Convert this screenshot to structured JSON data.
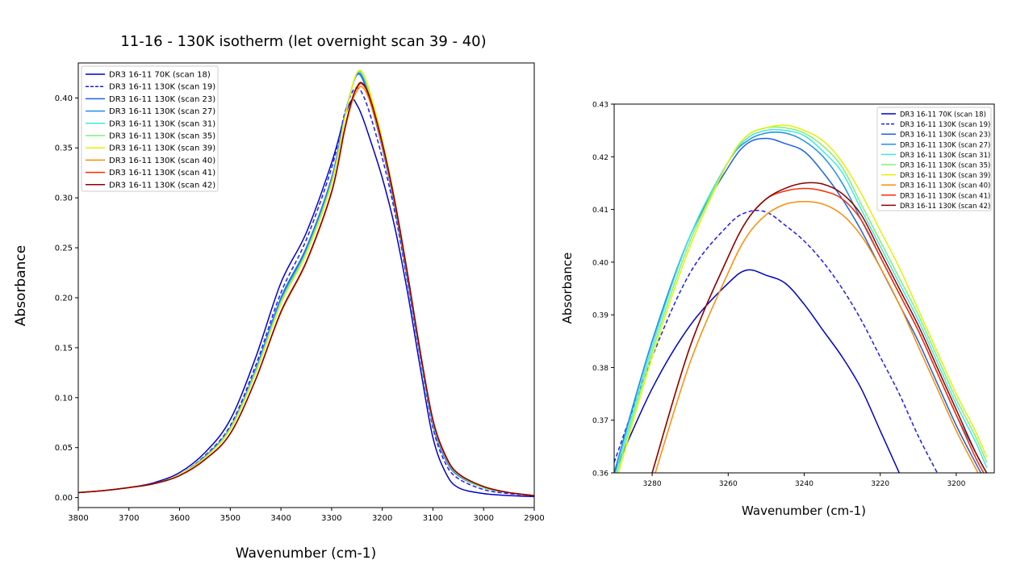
{
  "chart_data": [
    {
      "type": "line",
      "title": "11-16 - 130K isotherm (let overnight scan 39 - 40)",
      "xlabel": "Wavenumber (cm-1)",
      "ylabel": "Absorbance",
      "xlim": [
        3800,
        2900
      ],
      "ylim": [
        -0.01,
        0.435
      ],
      "x_ticks": [
        "3800",
        "3700",
        "3600",
        "3500",
        "3400",
        "3300",
        "3200",
        "3100",
        "3000",
        "2900"
      ],
      "y_ticks": [
        "0.00",
        "0.05",
        "0.10",
        "0.15",
        "0.20",
        "0.25",
        "0.30",
        "0.35",
        "0.40"
      ],
      "legend_position": "top-left",
      "x": [
        3800,
        3750,
        3700,
        3650,
        3600,
        3550,
        3500,
        3450,
        3400,
        3350,
        3300,
        3275,
        3260,
        3250,
        3240,
        3225,
        3200,
        3175,
        3150,
        3125,
        3100,
        3075,
        3050,
        3000,
        2950,
        2900
      ],
      "series": [
        {
          "name": "DR3 16-11 70K (scan 18)",
          "color": "#0000cd",
          "dash": false,
          "values": [
            0.005,
            0.007,
            0.01,
            0.015,
            0.025,
            0.045,
            0.078,
            0.14,
            0.215,
            0.265,
            0.335,
            0.38,
            0.398,
            0.393,
            0.382,
            0.36,
            0.32,
            0.27,
            0.205,
            0.13,
            0.06,
            0.025,
            0.01,
            0.004,
            0.002,
            0.001
          ]
        },
        {
          "name": "DR3 16-11 130K (scan 19)",
          "color": "#1a1aff",
          "dash": true,
          "values": [
            0.005,
            0.007,
            0.01,
            0.014,
            0.023,
            0.042,
            0.072,
            0.132,
            0.205,
            0.258,
            0.33,
            0.383,
            0.405,
            0.41,
            0.405,
            0.385,
            0.34,
            0.285,
            0.215,
            0.14,
            0.07,
            0.034,
            0.019,
            0.008,
            0.004,
            0.002
          ]
        },
        {
          "name": "DR3 16-11 130K (scan 23)",
          "color": "#1f5fe8",
          "dash": false,
          "values": [
            0.005,
            0.007,
            0.01,
            0.014,
            0.023,
            0.041,
            0.07,
            0.128,
            0.2,
            0.25,
            0.32,
            0.38,
            0.41,
            0.423,
            0.42,
            0.398,
            0.35,
            0.29,
            0.218,
            0.142,
            0.073,
            0.038,
            0.022,
            0.01,
            0.005,
            0.002
          ]
        },
        {
          "name": "DR3 16-11 130K (scan 27)",
          "color": "#1f90e8",
          "dash": false,
          "values": [
            0.005,
            0.007,
            0.01,
            0.014,
            0.023,
            0.041,
            0.07,
            0.127,
            0.198,
            0.248,
            0.318,
            0.379,
            0.41,
            0.424,
            0.422,
            0.401,
            0.352,
            0.292,
            0.22,
            0.143,
            0.074,
            0.039,
            0.023,
            0.01,
            0.005,
            0.002
          ]
        },
        {
          "name": "DR3 16-11 130K (scan 31)",
          "color": "#3ee8e0",
          "dash": false,
          "values": [
            0.005,
            0.007,
            0.01,
            0.014,
            0.023,
            0.04,
            0.069,
            0.126,
            0.196,
            0.246,
            0.316,
            0.378,
            0.41,
            0.425,
            0.424,
            0.404,
            0.355,
            0.294,
            0.222,
            0.144,
            0.075,
            0.04,
            0.023,
            0.01,
            0.005,
            0.002
          ]
        },
        {
          "name": "DR3 16-11 130K (scan 35)",
          "color": "#7ef07a",
          "dash": false,
          "values": [
            0.005,
            0.007,
            0.01,
            0.014,
            0.023,
            0.04,
            0.069,
            0.125,
            0.195,
            0.245,
            0.315,
            0.378,
            0.41,
            0.425,
            0.425,
            0.405,
            0.356,
            0.295,
            0.223,
            0.145,
            0.076,
            0.04,
            0.023,
            0.01,
            0.005,
            0.002
          ]
        },
        {
          "name": "DR3 16-11 130K (scan 39)",
          "color": "#e6f000",
          "dash": false,
          "values": [
            0.005,
            0.007,
            0.01,
            0.014,
            0.023,
            0.04,
            0.068,
            0.124,
            0.194,
            0.244,
            0.314,
            0.377,
            0.41,
            0.425,
            0.426,
            0.407,
            0.358,
            0.297,
            0.224,
            0.146,
            0.077,
            0.041,
            0.024,
            0.011,
            0.005,
            0.002
          ]
        },
        {
          "name": "DR3 16-11 130K (scan 40)",
          "color": "#ff8c00",
          "dash": false,
          "values": [
            0.005,
            0.007,
            0.01,
            0.014,
            0.022,
            0.038,
            0.064,
            0.118,
            0.185,
            0.235,
            0.305,
            0.365,
            0.395,
            0.407,
            0.411,
            0.397,
            0.352,
            0.293,
            0.222,
            0.145,
            0.077,
            0.041,
            0.024,
            0.011,
            0.005,
            0.002
          ]
        },
        {
          "name": "DR3 16-11 130K (scan 41)",
          "color": "#ff2a00",
          "dash": false,
          "values": [
            0.005,
            0.007,
            0.01,
            0.014,
            0.022,
            0.038,
            0.064,
            0.118,
            0.186,
            0.236,
            0.306,
            0.367,
            0.398,
            0.41,
            0.414,
            0.4,
            0.354,
            0.295,
            0.223,
            0.146,
            0.077,
            0.041,
            0.024,
            0.011,
            0.005,
            0.002
          ]
        },
        {
          "name": "DR3 16-11 130K (scan 42)",
          "color": "#8b0000",
          "dash": false,
          "values": [
            0.005,
            0.007,
            0.01,
            0.014,
            0.022,
            0.038,
            0.064,
            0.118,
            0.186,
            0.236,
            0.306,
            0.367,
            0.398,
            0.411,
            0.415,
            0.401,
            0.355,
            0.296,
            0.224,
            0.146,
            0.078,
            0.042,
            0.024,
            0.011,
            0.005,
            0.002
          ]
        }
      ]
    },
    {
      "type": "line",
      "title": "",
      "xlabel": "Wavenumber (cm-1)",
      "ylabel": "Absorbance",
      "xlim": [
        3290,
        3190
      ],
      "ylim": [
        0.36,
        0.43
      ],
      "x_ticks": [
        "3280",
        "3260",
        "3240",
        "3220",
        "3200"
      ],
      "y_ticks": [
        "0.36",
        "0.37",
        "0.38",
        "0.39",
        "0.40",
        "0.41",
        "0.42",
        "0.43"
      ],
      "legend_position": "top-right",
      "x": [
        3290,
        3280,
        3270,
        3260,
        3255,
        3250,
        3245,
        3240,
        3235,
        3230,
        3225,
        3220,
        3215,
        3210,
        3205,
        3200,
        3195,
        3192
      ],
      "series": [
        {
          "name": "DR3 16-11 70K (scan 18)",
          "color": "#0000cd",
          "dash": false,
          "values": [
            0.36,
            0.376,
            0.388,
            0.396,
            0.3985,
            0.3975,
            0.396,
            0.392,
            0.387,
            0.382,
            0.376,
            0.368,
            0.36,
            null,
            null,
            null,
            null,
            null
          ]
        },
        {
          "name": "DR3 16-11 130K (scan 19)",
          "color": "#1a1aff",
          "dash": true,
          "values": [
            0.362,
            0.382,
            0.398,
            0.407,
            0.4095,
            0.4095,
            0.407,
            0.404,
            0.4,
            0.395,
            0.389,
            0.382,
            0.375,
            0.367,
            0.36,
            null,
            null,
            null
          ]
        },
        {
          "name": "DR3 16-11 130K (scan 23)",
          "color": "#1f5fe8",
          "dash": false,
          "values": [
            0.36,
            0.385,
            0.405,
            0.418,
            0.4225,
            0.4235,
            0.4225,
            0.421,
            0.417,
            0.412,
            0.406,
            0.399,
            0.392,
            0.385,
            0.377,
            0.369,
            0.362,
            0.358
          ]
        },
        {
          "name": "DR3 16-11 130K (scan 27)",
          "color": "#1f90e8",
          "dash": false,
          "values": [
            0.36,
            0.385,
            0.405,
            0.419,
            0.423,
            0.4245,
            0.4245,
            0.423,
            0.42,
            0.415,
            0.408,
            0.401,
            0.394,
            0.387,
            0.379,
            0.371,
            0.364,
            0.36
          ]
        },
        {
          "name": "DR3 16-11 130K (scan 31)",
          "color": "#3ee8e0",
          "dash": false,
          "values": [
            0.359,
            0.384,
            0.405,
            0.419,
            0.4235,
            0.425,
            0.425,
            0.424,
            0.421,
            0.417,
            0.41,
            0.403,
            0.396,
            0.389,
            0.381,
            0.373,
            0.366,
            0.361
          ]
        },
        {
          "name": "DR3 16-11 130K (scan 35)",
          "color": "#7ef07a",
          "dash": false,
          "values": [
            0.358,
            0.383,
            0.404,
            0.419,
            0.424,
            0.4255,
            0.4255,
            0.4245,
            0.422,
            0.418,
            0.411,
            0.404,
            0.397,
            0.39,
            0.382,
            0.374,
            0.367,
            0.362
          ]
        },
        {
          "name": "DR3 16-11 130K (scan 39)",
          "color": "#e6f000",
          "dash": false,
          "values": [
            0.357,
            0.382,
            0.403,
            0.419,
            0.424,
            0.4255,
            0.426,
            0.425,
            0.423,
            0.419,
            0.413,
            0.406,
            0.399,
            0.391,
            0.383,
            0.375,
            0.368,
            0.363
          ]
        },
        {
          "name": "DR3 16-11 130K (scan 40)",
          "color": "#ff8c00",
          "dash": false,
          "values": [
            null,
            0.358,
            0.381,
            0.398,
            0.405,
            0.409,
            0.411,
            0.4115,
            0.411,
            0.409,
            0.405,
            0.399,
            0.392,
            0.384,
            0.376,
            0.368,
            0.361,
            0.357
          ]
        },
        {
          "name": "DR3 16-11 130K (scan 41)",
          "color": "#ff2a00",
          "dash": false,
          "values": [
            null,
            0.36,
            0.384,
            0.401,
            0.408,
            0.412,
            0.4135,
            0.414,
            0.4135,
            0.412,
            0.408,
            0.401,
            0.394,
            0.387,
            0.379,
            0.371,
            0.363,
            0.359
          ]
        },
        {
          "name": "DR3 16-11 130K (scan 42)",
          "color": "#8b0000",
          "dash": false,
          "values": [
            null,
            0.36,
            0.384,
            0.401,
            0.408,
            0.412,
            0.414,
            0.415,
            0.4148,
            0.413,
            0.409,
            0.402,
            0.395,
            0.388,
            0.38,
            0.372,
            0.364,
            0.36
          ]
        }
      ]
    }
  ]
}
